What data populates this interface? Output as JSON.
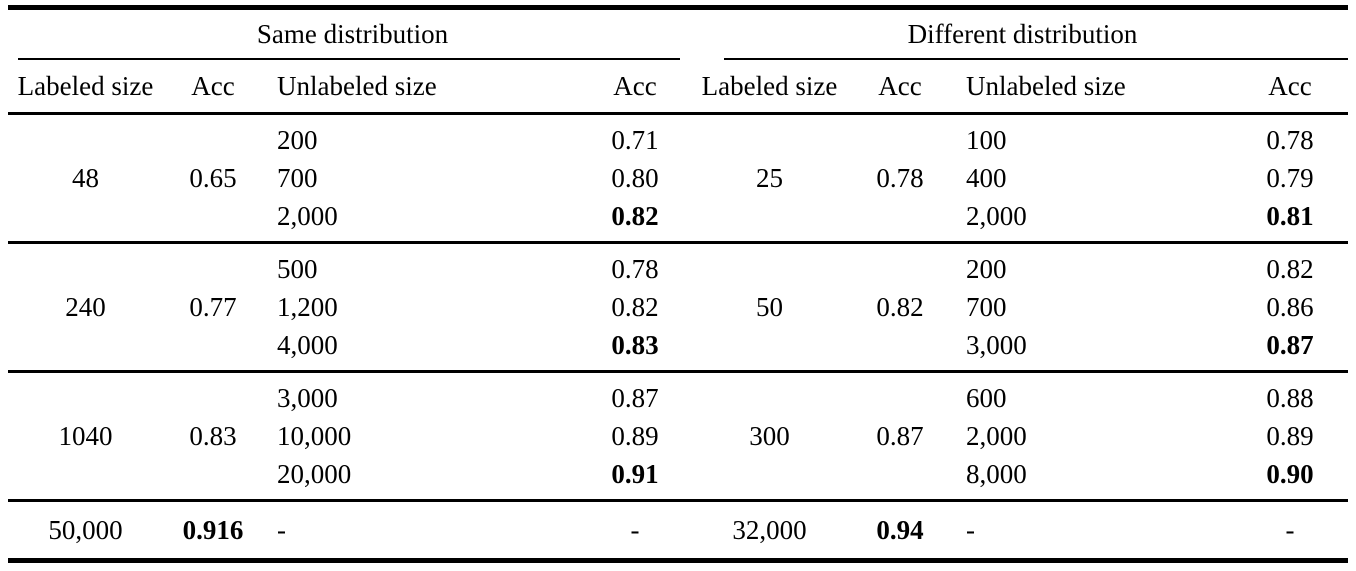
{
  "table": {
    "group_headers": [
      "Same distribution",
      "Different distribution"
    ],
    "column_headers": {
      "labeled_size": "Labeled size",
      "labeled_acc": "Acc",
      "unlabeled_size": "Unlabeled size",
      "unlabeled_acc": "Acc"
    },
    "row_groups": [
      {
        "same": {
          "labeled_size": "48",
          "labeled_acc": "0.65",
          "unlabeled": [
            {
              "size": "200",
              "acc": "0.71"
            },
            {
              "size": "700",
              "acc": "0.80"
            },
            {
              "size": "2,000",
              "acc": "0.82"
            }
          ]
        },
        "different": {
          "labeled_size": "25",
          "labeled_acc": "0.78",
          "unlabeled": [
            {
              "size": "100",
              "acc": "0.78"
            },
            {
              "size": "400",
              "acc": "0.79"
            },
            {
              "size": "2,000",
              "acc": "0.81"
            }
          ]
        }
      },
      {
        "same": {
          "labeled_size": "240",
          "labeled_acc": "0.77",
          "unlabeled": [
            {
              "size": "500",
              "acc": "0.78"
            },
            {
              "size": "1,200",
              "acc": "0.82"
            },
            {
              "size": "4,000",
              "acc": "0.83"
            }
          ]
        },
        "different": {
          "labeled_size": "50",
          "labeled_acc": "0.82",
          "unlabeled": [
            {
              "size": "200",
              "acc": "0.82"
            },
            {
              "size": "700",
              "acc": "0.86"
            },
            {
              "size": "3,000",
              "acc": "0.87"
            }
          ]
        }
      },
      {
        "same": {
          "labeled_size": "1040",
          "labeled_acc": "0.83",
          "unlabeled": [
            {
              "size": "3,000",
              "acc": "0.87"
            },
            {
              "size": "10,000",
              "acc": "0.89"
            },
            {
              "size": "20,000",
              "acc": "0.91"
            }
          ]
        },
        "different": {
          "labeled_size": "300",
          "labeled_acc": "0.87",
          "unlabeled": [
            {
              "size": "600",
              "acc": "0.88"
            },
            {
              "size": "2,000",
              "acc": "0.89"
            },
            {
              "size": "8,000",
              "acc": "0.90"
            }
          ]
        }
      }
    ],
    "final_row": {
      "same": {
        "labeled_size": "50,000",
        "labeled_acc": "0.916",
        "unlabeled_size": "-",
        "unlabeled_acc": "-"
      },
      "different": {
        "labeled_size": "32,000",
        "labeled_acc": "0.94",
        "unlabeled_size": "-",
        "unlabeled_acc": "-"
      }
    }
  }
}
